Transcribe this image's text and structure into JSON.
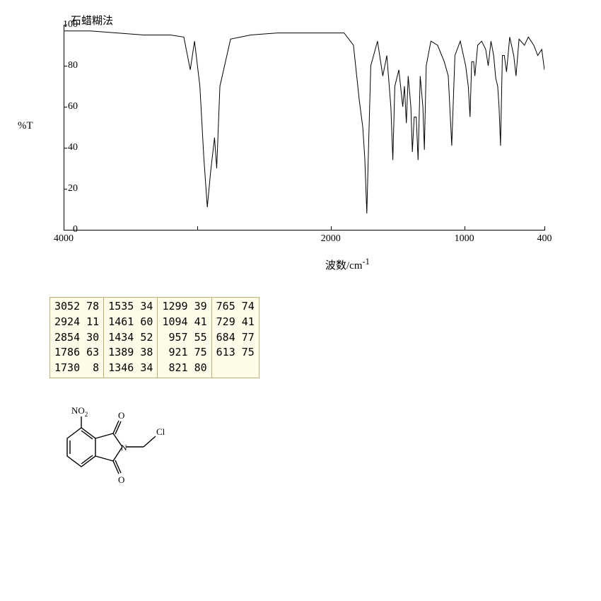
{
  "chart": {
    "title": "石蜡糊法",
    "y_label": "%T",
    "x_label": "波数/cm",
    "x_label_sup": "-1",
    "ylim": [
      0,
      100
    ],
    "xlim": [
      4000,
      400
    ],
    "y_ticks": [
      0,
      20,
      40,
      60,
      80,
      100
    ],
    "x_ticks": [
      4000,
      3000,
      2000,
      1000,
      400
    ],
    "x_tick_labels": [
      "4000",
      "",
      "2000",
      "1000",
      "400"
    ],
    "line_color": "#000000",
    "background": "#ffffff",
    "peaks": [
      {
        "wn": 4000,
        "t": 97
      },
      {
        "wn": 3800,
        "t": 97
      },
      {
        "wn": 3600,
        "t": 96
      },
      {
        "wn": 3400,
        "t": 95
      },
      {
        "wn": 3200,
        "t": 95
      },
      {
        "wn": 3100,
        "t": 94
      },
      {
        "wn": 3052,
        "t": 78
      },
      {
        "wn": 3020,
        "t": 92
      },
      {
        "wn": 2980,
        "t": 70
      },
      {
        "wn": 2950,
        "t": 35
      },
      {
        "wn": 2924,
        "t": 11
      },
      {
        "wn": 2900,
        "t": 28
      },
      {
        "wn": 2870,
        "t": 45
      },
      {
        "wn": 2854,
        "t": 30
      },
      {
        "wn": 2830,
        "t": 70
      },
      {
        "wn": 2750,
        "t": 93
      },
      {
        "wn": 2600,
        "t": 95
      },
      {
        "wn": 2400,
        "t": 96
      },
      {
        "wn": 2200,
        "t": 96
      },
      {
        "wn": 2000,
        "t": 96
      },
      {
        "wn": 1900,
        "t": 96
      },
      {
        "wn": 1830,
        "t": 90
      },
      {
        "wn": 1786,
        "t": 63
      },
      {
        "wn": 1760,
        "t": 50
      },
      {
        "wn": 1745,
        "t": 35
      },
      {
        "wn": 1730,
        "t": 8
      },
      {
        "wn": 1715,
        "t": 45
      },
      {
        "wn": 1700,
        "t": 80
      },
      {
        "wn": 1650,
        "t": 92
      },
      {
        "wn": 1610,
        "t": 75
      },
      {
        "wn": 1580,
        "t": 85
      },
      {
        "wn": 1550,
        "t": 60
      },
      {
        "wn": 1535,
        "t": 34
      },
      {
        "wn": 1520,
        "t": 70
      },
      {
        "wn": 1490,
        "t": 78
      },
      {
        "wn": 1461,
        "t": 60
      },
      {
        "wn": 1448,
        "t": 70
      },
      {
        "wn": 1434,
        "t": 52
      },
      {
        "wn": 1420,
        "t": 75
      },
      {
        "wn": 1400,
        "t": 60
      },
      {
        "wn": 1389,
        "t": 38
      },
      {
        "wn": 1375,
        "t": 55
      },
      {
        "wn": 1360,
        "t": 55
      },
      {
        "wn": 1346,
        "t": 34
      },
      {
        "wn": 1330,
        "t": 75
      },
      {
        "wn": 1310,
        "t": 60
      },
      {
        "wn": 1299,
        "t": 39
      },
      {
        "wn": 1285,
        "t": 80
      },
      {
        "wn": 1250,
        "t": 92
      },
      {
        "wn": 1200,
        "t": 90
      },
      {
        "wn": 1150,
        "t": 82
      },
      {
        "wn": 1120,
        "t": 75
      },
      {
        "wn": 1094,
        "t": 41
      },
      {
        "wn": 1070,
        "t": 85
      },
      {
        "wn": 1030,
        "t": 92
      },
      {
        "wn": 990,
        "t": 80
      },
      {
        "wn": 970,
        "t": 70
      },
      {
        "wn": 957,
        "t": 55
      },
      {
        "wn": 945,
        "t": 82
      },
      {
        "wn": 930,
        "t": 82
      },
      {
        "wn": 921,
        "t": 75
      },
      {
        "wn": 900,
        "t": 90
      },
      {
        "wn": 870,
        "t": 92
      },
      {
        "wn": 840,
        "t": 88
      },
      {
        "wn": 821,
        "t": 80
      },
      {
        "wn": 800,
        "t": 92
      },
      {
        "wn": 780,
        "t": 85
      },
      {
        "wn": 765,
        "t": 74
      },
      {
        "wn": 750,
        "t": 70
      },
      {
        "wn": 740,
        "t": 60
      },
      {
        "wn": 729,
        "t": 41
      },
      {
        "wn": 715,
        "t": 85
      },
      {
        "wn": 700,
        "t": 85
      },
      {
        "wn": 684,
        "t": 77
      },
      {
        "wn": 660,
        "t": 94
      },
      {
        "wn": 630,
        "t": 85
      },
      {
        "wn": 613,
        "t": 75
      },
      {
        "wn": 590,
        "t": 93
      },
      {
        "wn": 550,
        "t": 90
      },
      {
        "wn": 520,
        "t": 94
      },
      {
        "wn": 480,
        "t": 90
      },
      {
        "wn": 450,
        "t": 85
      },
      {
        "wn": 420,
        "t": 88
      },
      {
        "wn": 400,
        "t": 78
      }
    ]
  },
  "table": {
    "columns": [
      [
        "3052 78",
        "2924 11",
        "2854 30",
        "1786 63",
        "1730  8"
      ],
      [
        "1535 34",
        "1461 60",
        "1434 52",
        "1389 38",
        "1346 34"
      ],
      [
        "1299 39",
        "1094 41",
        " 957 55",
        " 921 75",
        " 821 80"
      ],
      [
        "765 74",
        "729 41",
        "684 77",
        "613 75",
        ""
      ]
    ],
    "bg": "#fefce8",
    "border": "#c0b070"
  },
  "molecule": {
    "labels": {
      "no2": "NO",
      "no2_sub": "2",
      "o1": "O",
      "o2": "O",
      "n": "N",
      "cl": "Cl"
    }
  }
}
